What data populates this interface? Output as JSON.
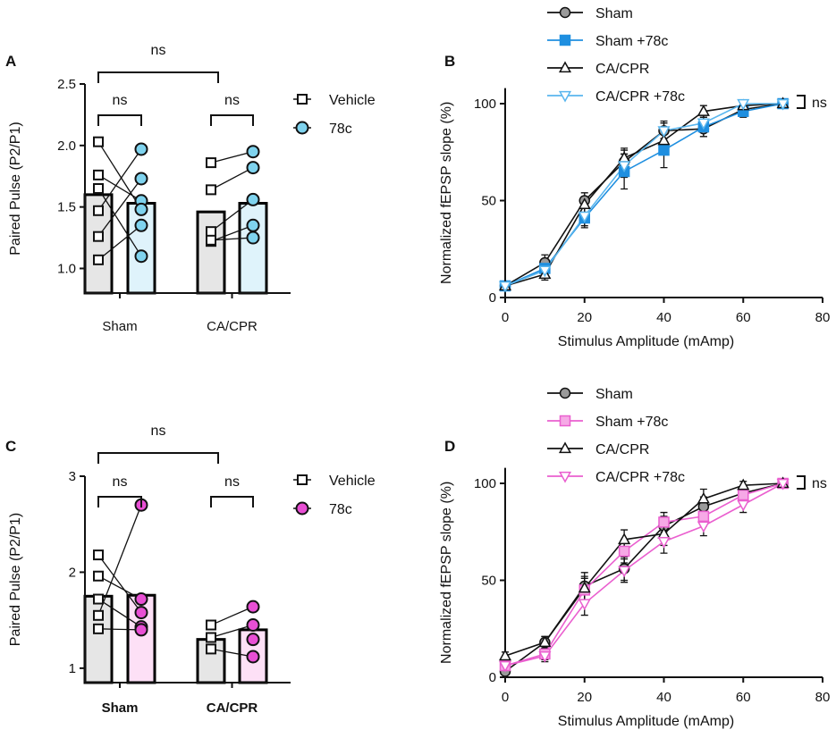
{
  "chart_data": [
    {
      "panel": "A",
      "type": "bar",
      "ylabel": "Paired Pulse (P2/P1)",
      "ylim": [
        0.8,
        2.5
      ],
      "yticks": [
        "1.0",
        "1.5",
        "2.0",
        "2.5"
      ],
      "ytick_values": [
        1.0,
        1.5,
        2.0,
        2.5
      ],
      "categories": [
        "Sham",
        "CA/CPR"
      ],
      "legend": [
        "Vehicle",
        "78c"
      ],
      "significance": [
        "ns",
        "ns",
        "ns"
      ],
      "colors": {
        "vehicle_fill": "#e6e6e6",
        "treat_fill": "#dff3fb",
        "treat_marker": "#7fd3ee",
        "edge": "#000000"
      },
      "series": [
        {
          "name": "Vehicle",
          "means": [
            1.6,
            1.46
          ],
          "points": [
            [
              2.03,
              1.76,
              1.65,
              1.47,
              1.26,
              1.07
            ],
            [
              1.86,
              1.64,
              1.3,
              1.22,
              1.23
            ]
          ]
        },
        {
          "name": "78c",
          "means": [
            1.53,
            1.53
          ],
          "points": [
            [
              1.97,
              1.73,
              1.55,
              1.48,
              1.35,
              1.1
            ],
            [
              1.95,
              1.82,
              1.56,
              1.35,
              1.25
            ]
          ]
        }
      ],
      "pairs": [
        [
          [
            2.03,
            1.48
          ],
          [
            1.76,
            1.55
          ],
          [
            1.65,
            1.1
          ],
          [
            1.47,
            1.97
          ],
          [
            1.26,
            1.73
          ],
          [
            1.07,
            1.35
          ]
        ],
        [
          [
            1.86,
            1.95
          ],
          [
            1.64,
            1.82
          ],
          [
            1.3,
            1.56
          ],
          [
            1.22,
            1.35
          ],
          [
            1.23,
            1.25
          ]
        ]
      ]
    },
    {
      "panel": "B",
      "type": "line",
      "xlabel": "Stimulus Amplitude (mAmp)",
      "ylabel": "Normalized fEPSP slope (%)",
      "xlim": [
        0,
        80
      ],
      "ylim": [
        0,
        100
      ],
      "xticks": [
        "0",
        "20",
        "40",
        "60",
        "80"
      ],
      "xtick_values": [
        0,
        20,
        40,
        60,
        80
      ],
      "yticks": [
        "0",
        "50",
        "100"
      ],
      "ytick_values": [
        0,
        50,
        100
      ],
      "x": [
        0,
        10,
        20,
        30,
        40,
        50,
        60,
        70
      ],
      "significance": "ns",
      "series": [
        {
          "name": "Sham",
          "marker": "circle",
          "color": "#111111",
          "fill": "#9a9a9a",
          "values": [
            6,
            18,
            50,
            70,
            86,
            87,
            97,
            100
          ],
          "errors": [
            1.5,
            4,
            4,
            6,
            5,
            4,
            3,
            0
          ]
        },
        {
          "name": "Sham +78c",
          "marker": "square",
          "color": "#1f8fe0",
          "fill": "#1f8fe0",
          "values": [
            6,
            15,
            41,
            65,
            76,
            88,
            96,
            100
          ],
          "errors": [
            1.5,
            3,
            5,
            9,
            9,
            5,
            3,
            0
          ]
        },
        {
          "name": "CA/CPR",
          "marker": "triangle-up",
          "color": "#111111",
          "fill": "#ffffff",
          "values": [
            6,
            12,
            48,
            72,
            81,
            96,
            99,
            100
          ],
          "errors": [
            1.5,
            3,
            4,
            5,
            6,
            3,
            2,
            0
          ]
        },
        {
          "name": "CA/CPR +78c",
          "marker": "triangle-down",
          "color": "#5ab6ee",
          "fill": "#ffffff",
          "values": [
            6,
            14,
            42,
            68,
            86,
            90,
            100,
            100
          ],
          "errors": [
            1.5,
            3,
            5,
            6,
            4,
            4,
            2,
            0
          ]
        }
      ]
    },
    {
      "panel": "C",
      "type": "bar",
      "ylabel": "Paired Pulse (P2/P1)",
      "ylim": [
        0.85,
        3.0
      ],
      "yticks": [
        "1",
        "2",
        "3"
      ],
      "ytick_values": [
        1,
        2,
        3
      ],
      "categories": [
        "Sham",
        "CA/CPR"
      ],
      "legend": [
        "Vehicle",
        "78c"
      ],
      "significance": [
        "ns",
        "ns",
        "ns"
      ],
      "colors": {
        "vehicle_fill": "#e6e6e6",
        "treat_fill": "#fde0f6",
        "treat_marker": "#e84fd4",
        "edge": "#000000"
      },
      "series": [
        {
          "name": "Vehicle",
          "means": [
            1.75,
            1.3
          ],
          "points": [
            [
              2.18,
              1.96,
              1.72,
              1.55,
              1.41
            ],
            [
              1.45,
              1.32,
              1.2
            ]
          ]
        },
        {
          "name": "78c",
          "means": [
            1.76,
            1.4
          ],
          "points": [
            [
              2.7,
              1.72,
              1.58,
              1.43,
              1.4
            ],
            [
              1.64,
              1.45,
              1.3,
              1.12
            ]
          ]
        }
      ],
      "pairs": [
        [
          [
            2.18,
            1.58
          ],
          [
            1.96,
            1.72
          ],
          [
            1.72,
            1.43
          ],
          [
            1.55,
            2.7
          ],
          [
            1.41,
            1.4
          ]
        ],
        [
          [
            1.45,
            1.64
          ],
          [
            1.32,
            1.45
          ],
          [
            1.2,
            1.12
          ]
        ]
      ]
    },
    {
      "panel": "D",
      "type": "line",
      "xlabel": "Stimulus Amplitude (mAmp)",
      "ylabel": "Normalized fEPSP slope (%)",
      "xlim": [
        0,
        80
      ],
      "ylim": [
        0,
        100
      ],
      "xticks": [
        "0",
        "20",
        "40",
        "60",
        "80"
      ],
      "xtick_values": [
        0,
        20,
        40,
        60,
        80
      ],
      "yticks": [
        "0",
        "50",
        "100"
      ],
      "ytick_values": [
        0,
        50,
        100
      ],
      "x": [
        0,
        10,
        20,
        30,
        40,
        50,
        60,
        70
      ],
      "significance": "ns",
      "series": [
        {
          "name": "Sham",
          "marker": "circle",
          "color": "#111111",
          "fill": "#9a9a9a",
          "values": [
            3,
            18,
            47,
            56,
            78,
            88,
            95,
            100
          ],
          "errors": [
            1.5,
            3,
            7,
            6,
            5,
            5,
            3,
            0
          ]
        },
        {
          "name": "Sham +78c",
          "marker": "square",
          "color": "#ea5fcf",
          "fill": "#f6a9e6",
          "values": [
            6,
            12,
            45,
            65,
            80,
            83,
            94,
            100
          ],
          "errors": [
            1.5,
            3,
            6,
            6,
            5,
            5,
            3,
            0
          ]
        },
        {
          "name": "CA/CPR",
          "marker": "triangle-up",
          "color": "#111111",
          "fill": "#ffffff",
          "values": [
            11,
            18,
            46,
            71,
            74,
            92,
            99,
            100
          ],
          "errors": [
            2,
            3,
            6,
            5,
            6,
            5,
            2,
            0
          ]
        },
        {
          "name": "CA/CPR +78c",
          "marker": "triangle-down",
          "color": "#ea5fcf",
          "fill": "#ffffff",
          "values": [
            6,
            11,
            38,
            55,
            70,
            78,
            89,
            100
          ],
          "errors": [
            1.5,
            3,
            6,
            6,
            6,
            5,
            4,
            0
          ]
        }
      ]
    }
  ]
}
